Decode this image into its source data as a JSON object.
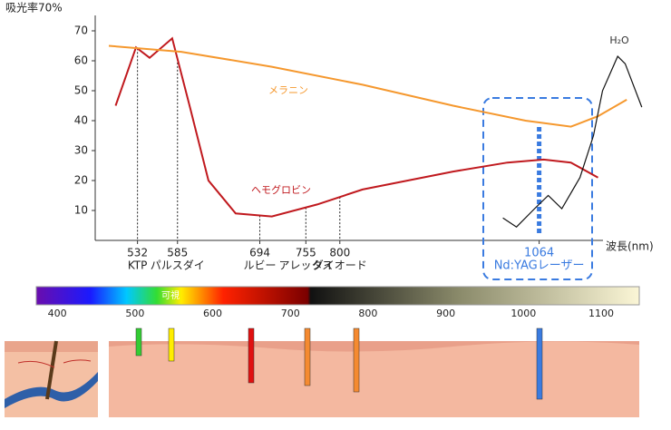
{
  "chart_data": {
    "type": "line",
    "y_label": "吸光率70%",
    "x_label": "波長(nm)",
    "xlim": [
      476,
      1205
    ],
    "ylim": [
      0,
      75
    ],
    "yticks": [
      10,
      20,
      30,
      40,
      50,
      60,
      70
    ],
    "xticks": [
      532,
      585,
      694,
      755,
      800,
      1064
    ],
    "xtick_names": [
      "KTP",
      "パルスダイ",
      "ルビー",
      "アレックス",
      "ダイオード",
      "Nd:YAGレーザー"
    ],
    "highlight_color": "#3a7be0",
    "series": [
      {
        "name": "ヘモグロビン",
        "color": "#c0191e",
        "x": [
          503,
          530,
          548,
          578,
          602,
          626,
          662,
          710,
          770,
          830,
          890,
          950,
          1022,
          1070,
          1106,
          1142
        ],
        "values": [
          45,
          64.5,
          61,
          67.5,
          44,
          20,
          9,
          8,
          12,
          17,
          20,
          23,
          26,
          27,
          26,
          21
        ]
      },
      {
        "name": "メラニン",
        "color": "#f5982e",
        "x": [
          494,
          590,
          710,
          830,
          950,
          1046,
          1106,
          1142,
          1180
        ],
        "values": [
          65,
          63,
          58,
          52,
          45,
          40,
          38,
          41.5,
          47
        ]
      },
      {
        "name": "H₂O",
        "color": "#111111",
        "x": [
          1016,
          1034,
          1058,
          1076,
          1094,
          1118,
          1136,
          1148,
          1168,
          1178,
          1200
        ],
        "values": [
          7.5,
          4.5,
          10.6,
          15,
          10.6,
          21,
          35,
          50,
          61.5,
          59,
          44.5
        ]
      }
    ],
    "spectrum": {
      "label": "可視",
      "xlim": [
        373,
        1149
      ],
      "ticks": [
        400,
        500,
        600,
        700,
        800,
        900,
        1000,
        1100
      ]
    }
  }
}
